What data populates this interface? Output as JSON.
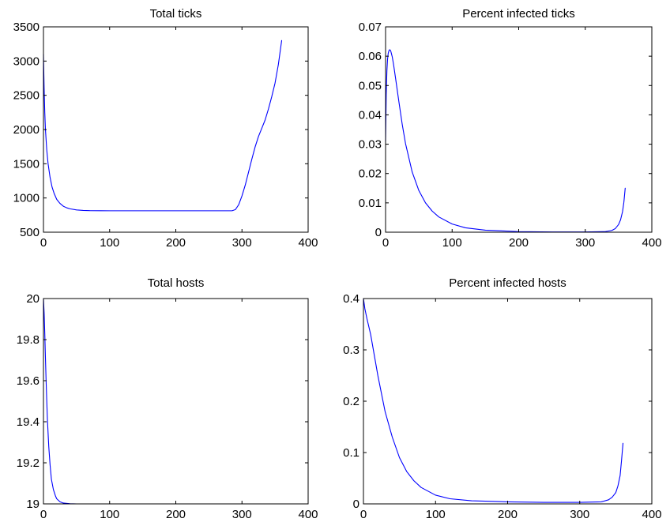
{
  "figure": {
    "line_color": "#0000ff",
    "axes_color": "#000000",
    "background": "#ffffff"
  },
  "chart_data": [
    {
      "id": "total-ticks",
      "type": "line",
      "title": "Total ticks",
      "xlabel": "",
      "ylabel": "",
      "xlim": [
        0,
        400
      ],
      "ylim": [
        500,
        3500
      ],
      "xticks": [
        0,
        100,
        200,
        300,
        400
      ],
      "yticks": [
        500,
        1000,
        1500,
        2000,
        2500,
        3000,
        3500
      ],
      "xtick_labels": [
        "0",
        "100",
        "200",
        "300",
        "400"
      ],
      "ytick_labels": [
        "500",
        "1000",
        "1500",
        "2000",
        "2500",
        "3000",
        "3500"
      ],
      "grid": false,
      "series": [
        {
          "color": "#0000ff",
          "x": [
            0,
            1,
            2,
            3,
            5,
            7,
            10,
            13,
            16,
            20,
            25,
            30,
            35,
            40,
            50,
            60,
            70,
            100,
            150,
            200,
            250,
            285,
            290,
            295,
            300,
            305,
            310,
            315,
            320,
            325,
            330,
            335,
            340,
            345,
            350,
            355,
            360
          ],
          "y": [
            3100,
            2600,
            2250,
            2000,
            1700,
            1500,
            1300,
            1160,
            1070,
            980,
            920,
            880,
            857,
            842,
            825,
            818,
            815,
            813,
            813,
            813,
            813,
            813,
            830,
            900,
            1030,
            1190,
            1380,
            1570,
            1750,
            1900,
            2020,
            2140,
            2300,
            2480,
            2680,
            2950,
            3300
          ]
        }
      ]
    },
    {
      "id": "percent-infected-ticks",
      "type": "line",
      "title": "Percent infected ticks",
      "xlabel": "",
      "ylabel": "",
      "xlim": [
        0,
        400
      ],
      "ylim": [
        0,
        0.07
      ],
      "xticks": [
        0,
        100,
        200,
        300,
        400
      ],
      "yticks": [
        0,
        0.01,
        0.02,
        0.03,
        0.04,
        0.05,
        0.06,
        0.07
      ],
      "xtick_labels": [
        "0",
        "100",
        "200",
        "300",
        "400"
      ],
      "ytick_labels": [
        "0",
        "0.01",
        "0.02",
        "0.03",
        "0.04",
        "0.05",
        "0.06",
        "0.07"
      ],
      "grid": false,
      "series": [
        {
          "color": "#0000ff",
          "x": [
            0,
            1,
            2,
            3,
            4,
            5,
            6,
            7,
            8,
            10,
            12,
            15,
            20,
            25,
            30,
            40,
            50,
            60,
            70,
            80,
            100,
            120,
            150,
            200,
            250,
            300,
            330,
            340,
            345,
            350,
            353,
            356,
            358,
            360
          ],
          "y": [
            0.031,
            0.047,
            0.055,
            0.059,
            0.061,
            0.0618,
            0.0622,
            0.0621,
            0.0616,
            0.0598,
            0.0572,
            0.0525,
            0.0445,
            0.0368,
            0.0302,
            0.0205,
            0.0142,
            0.01,
            0.0072,
            0.0052,
            0.0028,
            0.0015,
            0.0007,
            0.0002,
            0.0001,
            0.0001,
            0.0002,
            0.0006,
            0.0012,
            0.0026,
            0.0042,
            0.007,
            0.0102,
            0.015
          ]
        }
      ]
    },
    {
      "id": "total-hosts",
      "type": "line",
      "title": "Total hosts",
      "xlabel": "",
      "ylabel": "",
      "xlim": [
        0,
        400
      ],
      "ylim": [
        19,
        20
      ],
      "xticks": [
        0,
        100,
        200,
        300,
        400
      ],
      "yticks": [
        19,
        19.2,
        19.4,
        19.6,
        19.8,
        20
      ],
      "xtick_labels": [
        "0",
        "100",
        "200",
        "300",
        "400"
      ],
      "ytick_labels": [
        "19",
        "19.2",
        "19.4",
        "19.6",
        "19.8",
        "20"
      ],
      "grid": false,
      "series": [
        {
          "color": "#0000ff",
          "x": [
            0,
            1,
            2,
            3,
            4,
            5,
            6,
            8,
            10,
            12,
            15,
            18,
            20,
            25,
            30,
            40,
            50,
            60,
            70,
            80
          ],
          "y": [
            20,
            19.93,
            19.83,
            19.71,
            19.6,
            19.5,
            19.41,
            19.28,
            19.19,
            19.12,
            19.07,
            19.04,
            19.025,
            19.01,
            19.004,
            19.001,
            19.0,
            19.0,
            19.0,
            19.0
          ]
        }
      ]
    },
    {
      "id": "percent-infected-hosts",
      "type": "line",
      "title": "Percent infected hosts",
      "xlabel": "",
      "ylabel": "",
      "xlim": [
        0,
        400
      ],
      "ylim": [
        0,
        0.4
      ],
      "xticks": [
        0,
        100,
        200,
        300,
        400
      ],
      "yticks": [
        0,
        0.1,
        0.2,
        0.3,
        0.4
      ],
      "xtick_labels": [
        "0",
        "100",
        "200",
        "300",
        "400"
      ],
      "ytick_labels": [
        "0",
        "0.1",
        "0.2",
        "0.3",
        "0.4"
      ],
      "grid": false,
      "series": [
        {
          "color": "#0000ff",
          "x": [
            0,
            2,
            5,
            10,
            15,
            20,
            25,
            30,
            40,
            50,
            60,
            70,
            80,
            100,
            120,
            150,
            200,
            250,
            300,
            330,
            340,
            345,
            350,
            353,
            356,
            358,
            360
          ],
          "y": [
            0.4,
            0.38,
            0.36,
            0.33,
            0.29,
            0.25,
            0.215,
            0.18,
            0.13,
            0.09,
            0.063,
            0.045,
            0.032,
            0.017,
            0.01,
            0.006,
            0.004,
            0.003,
            0.003,
            0.004,
            0.008,
            0.013,
            0.022,
            0.035,
            0.055,
            0.085,
            0.118
          ]
        }
      ]
    }
  ]
}
